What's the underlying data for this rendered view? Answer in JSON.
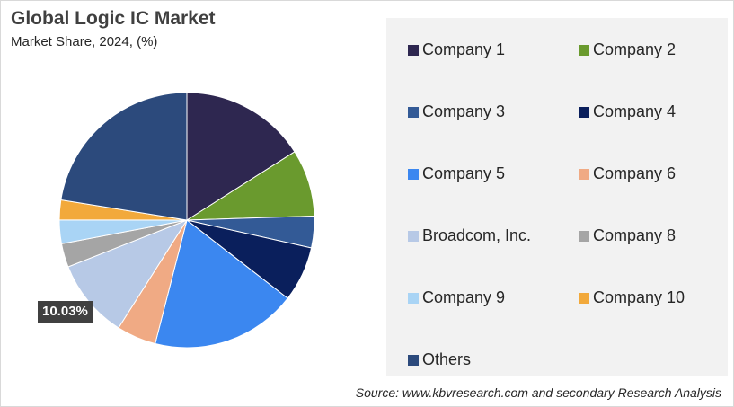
{
  "chart_data": {
    "type": "pie",
    "title": "Global Logic IC Market",
    "subtitle": "Market Share, 2024, (%)",
    "legend_position": "right",
    "slices": [
      {
        "name": "Company 1",
        "value": 16.0,
        "color": "#2e2750"
      },
      {
        "name": "Company 2",
        "value": 8.5,
        "color": "#6a9a2e"
      },
      {
        "name": "Company 3",
        "value": 4.0,
        "color": "#335a96"
      },
      {
        "name": "Company 4",
        "value": 7.0,
        "color": "#0a1f5c"
      },
      {
        "name": "Company 5",
        "value": 18.5,
        "color": "#3b87f0"
      },
      {
        "name": "Company 6",
        "value": 5.0,
        "color": "#f0aa84"
      },
      {
        "name": "Broadcom, Inc.",
        "value": 10.03,
        "color": "#b7c9e6"
      },
      {
        "name": "Company 8",
        "value": 3.0,
        "color": "#a5a5a5"
      },
      {
        "name": "Company 9",
        "value": 3.0,
        "color": "#a9d4f5"
      },
      {
        "name": "Company 10",
        "value": 2.5,
        "color": "#f2a93b"
      },
      {
        "name": "Others",
        "value": 22.47,
        "color": "#2c4a7c"
      }
    ],
    "data_label": {
      "slice": "Broadcom, Inc.",
      "text": "10.03%"
    }
  },
  "source_note": "Source: www.kbvresearch.com and secondary Research Analysis"
}
